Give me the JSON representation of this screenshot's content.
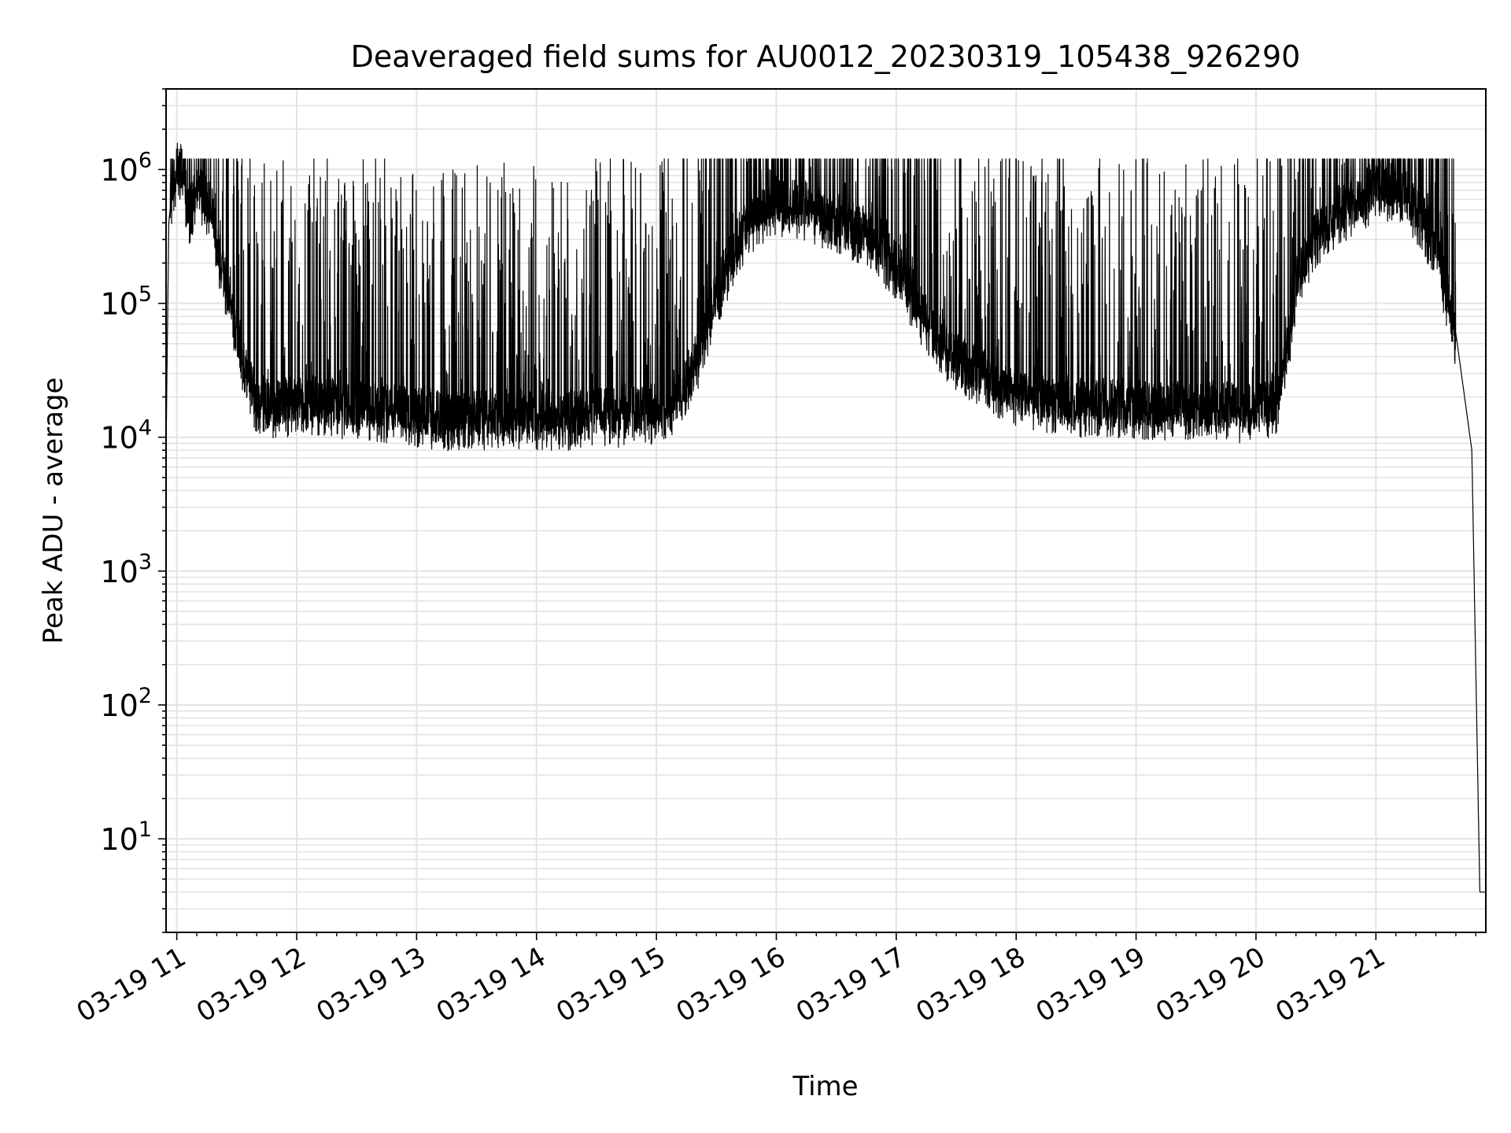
{
  "chart_data": {
    "type": "line",
    "title": "Deaveraged field sums for AU0012_20230319_105438_926290",
    "xlabel": "Time",
    "ylabel": "Peak ADU - average",
    "yscale": "log",
    "ylim": [
      2,
      4000000
    ],
    "xlim": [
      "03-19 10:54:38",
      "03-19 21:55:00"
    ],
    "grid": true,
    "line_color": "#000000",
    "x_ticks": [
      {
        "value": "03-19 11:00",
        "label": "03-19 11"
      },
      {
        "value": "03-19 12:00",
        "label": "03-19 12"
      },
      {
        "value": "03-19 13:00",
        "label": "03-19 13"
      },
      {
        "value": "03-19 14:00",
        "label": "03-19 14"
      },
      {
        "value": "03-19 15:00",
        "label": "03-19 15"
      },
      {
        "value": "03-19 16:00",
        "label": "03-19 16"
      },
      {
        "value": "03-19 17:00",
        "label": "03-19 17"
      },
      {
        "value": "03-19 18:00",
        "label": "03-19 18"
      },
      {
        "value": "03-19 19:00",
        "label": "03-19 19"
      },
      {
        "value": "03-19 20:00",
        "label": "03-19 20"
      },
      {
        "value": "03-19 21:00",
        "label": "03-19 21"
      }
    ],
    "y_ticks": [
      {
        "value": 10,
        "base": "10",
        "exp": "1"
      },
      {
        "value": 100,
        "base": "10",
        "exp": "2"
      },
      {
        "value": 1000,
        "base": "10",
        "exp": "3"
      },
      {
        "value": 10000,
        "base": "10",
        "exp": "4"
      },
      {
        "value": 100000,
        "base": "10",
        "exp": "5"
      },
      {
        "value": 1000000,
        "base": "10",
        "exp": "6"
      }
    ],
    "series": [
      {
        "points": [
          [
            "03-19 10:54:38",
            8000
          ],
          [
            "03-19 10:56",
            400000
          ],
          [
            "03-19 10:58",
            800000
          ],
          [
            "03-19 11:00",
            1100000
          ],
          [
            "03-19 11:03",
            1000000
          ],
          [
            "03-19 11:06",
            500000
          ],
          [
            "03-19 11:10",
            700000
          ],
          [
            "03-19 11:14",
            650000
          ],
          [
            "03-19 11:18",
            500000
          ],
          [
            "03-19 11:22",
            200000
          ],
          [
            "03-19 11:26",
            120000
          ],
          [
            "03-19 11:30",
            60000
          ],
          [
            "03-19 11:35",
            30000
          ],
          [
            "03-19 11:40",
            20000
          ],
          [
            "03-19 11:50",
            18000
          ],
          [
            "03-19 12:00",
            20000
          ],
          [
            "03-19 12:15",
            19000
          ],
          [
            "03-19 12:30",
            18000
          ],
          [
            "03-19 12:45",
            17000
          ],
          [
            "03-19 13:00",
            16000
          ],
          [
            "03-19 13:15",
            15000
          ],
          [
            "03-19 13:30",
            15000
          ],
          [
            "03-19 13:45",
            16000
          ],
          [
            "03-19 14:00",
            15000
          ],
          [
            "03-19 14:15",
            15000
          ],
          [
            "03-19 14:30",
            16000
          ],
          [
            "03-19 14:45",
            16000
          ],
          [
            "03-19 15:00",
            17000
          ],
          [
            "03-19 15:10",
            20000
          ],
          [
            "03-19 15:20",
            40000
          ],
          [
            "03-19 15:30",
            120000
          ],
          [
            "03-19 15:40",
            300000
          ],
          [
            "03-19 15:50",
            500000
          ],
          [
            "03-19 16:00",
            600000
          ],
          [
            "03-19 16:15",
            550000
          ],
          [
            "03-19 16:30",
            450000
          ],
          [
            "03-19 16:45",
            350000
          ],
          [
            "03-19 17:00",
            200000
          ],
          [
            "03-19 17:15",
            80000
          ],
          [
            "03-19 17:30",
            40000
          ],
          [
            "03-19 17:45",
            30000
          ],
          [
            "03-19 18:00",
            22000
          ],
          [
            "03-19 18:30",
            19000
          ],
          [
            "03-19 19:00",
            18000
          ],
          [
            "03-19 19:30",
            18000
          ],
          [
            "03-19 20:00",
            17000
          ],
          [
            "03-19 20:10",
            20000
          ],
          [
            "03-19 20:15",
            40000
          ],
          [
            "03-19 20:20",
            150000
          ],
          [
            "03-19 20:30",
            350000
          ],
          [
            "03-19 20:40",
            500000
          ],
          [
            "03-19 20:50",
            600000
          ],
          [
            "03-19 21:00",
            800000
          ],
          [
            "03-19 21:15",
            700000
          ],
          [
            "03-19 21:30",
            300000
          ],
          [
            "03-19 21:40",
            60000
          ],
          [
            "03-19 21:48",
            8000
          ],
          [
            "03-19 21:52",
            4
          ],
          [
            "03-19 21:54",
            4
          ]
        ],
        "spikes_up_to": 1000000,
        "dips_down_to": 7000
      }
    ]
  }
}
